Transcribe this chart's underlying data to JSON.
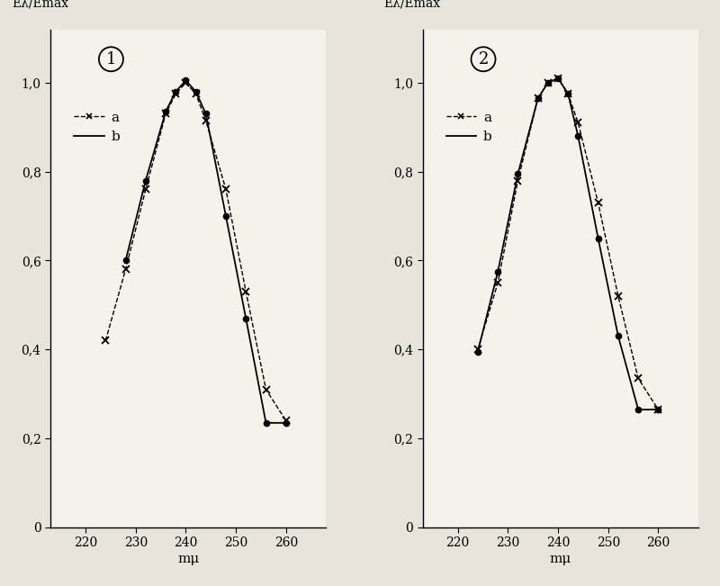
{
  "plot1": {
    "title": "1",
    "a_x": [
      224,
      228,
      232,
      236,
      238,
      240,
      242,
      244,
      248,
      252,
      256,
      260
    ],
    "a_y": [
      0.42,
      0.58,
      0.76,
      0.93,
      0.975,
      1.0,
      0.975,
      0.915,
      0.76,
      0.53,
      0.31,
      0.24
    ],
    "b_x": [
      228,
      232,
      236,
      238,
      240,
      242,
      244,
      248,
      252,
      256,
      260
    ],
    "b_y": [
      0.6,
      0.78,
      0.935,
      0.98,
      1.005,
      0.98,
      0.93,
      0.7,
      0.47,
      0.235,
      0.235
    ]
  },
  "plot2": {
    "title": "2",
    "a_x": [
      224,
      228,
      232,
      236,
      238,
      240,
      242,
      244,
      248,
      252,
      256,
      260
    ],
    "a_y": [
      0.4,
      0.55,
      0.78,
      0.965,
      1.0,
      1.01,
      0.975,
      0.91,
      0.73,
      0.52,
      0.335,
      0.265
    ],
    "b_x": [
      224,
      228,
      232,
      236,
      238,
      240,
      242,
      244,
      248,
      252,
      256,
      260
    ],
    "b_y": [
      0.395,
      0.575,
      0.795,
      0.965,
      1.0,
      1.01,
      0.975,
      0.88,
      0.65,
      0.43,
      0.265,
      0.265
    ]
  },
  "ylabel": "Eλ/Emax",
  "xlabel": "mμ",
  "yticks": [
    0,
    0.2,
    0.4,
    0.6,
    0.8,
    1.0
  ],
  "ytick_labels": [
    "0",
    "0,2",
    "0,4",
    "0,6",
    "0,8",
    "1,0"
  ],
  "xticks": [
    220,
    230,
    240,
    250,
    260
  ],
  "ylim": [
    0,
    1.12
  ],
  "xlim": [
    213,
    268
  ],
  "bg_color": "#e8e4dc",
  "paper_color": "#f5f2ec",
  "line_color": "#000000",
  "legend_a_label": "a",
  "legend_b_label": "b"
}
